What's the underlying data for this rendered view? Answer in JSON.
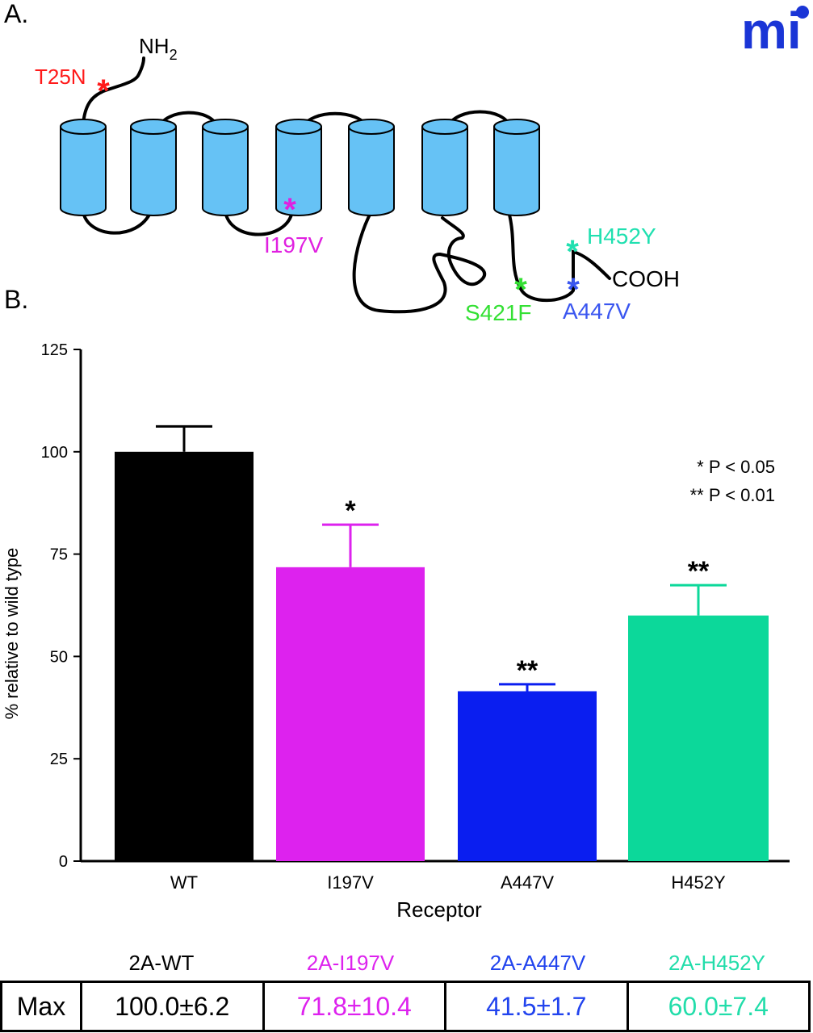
{
  "panel_a": {
    "label": "A.",
    "logo_text": "mi",
    "nh2": "NH",
    "nh2_sub": "2",
    "cooh": "COOH",
    "mutations": [
      {
        "label": "T25N",
        "color": "#ff1a1a"
      },
      {
        "label": "I197V",
        "color": "#e020e0"
      },
      {
        "label": "S421F",
        "color": "#33e033"
      },
      {
        "label": "A447V",
        "color": "#3a56f0"
      },
      {
        "label": "H452Y",
        "color": "#20e0b0"
      }
    ],
    "helix_color": "#66c2f5"
  },
  "panel_b": {
    "label": "B.",
    "legend": [
      "* P < 0.05",
      "** P < 0.01"
    ]
  },
  "chart_data": {
    "type": "bar",
    "categories": [
      "WT",
      "I197V",
      "A447V",
      "H452Y"
    ],
    "values": [
      100.0,
      71.8,
      41.5,
      60.0
    ],
    "errors": [
      6.2,
      10.4,
      1.7,
      7.4
    ],
    "colors": [
      "#000000",
      "#dd22ee",
      "#0a1ef0",
      "#0cd89a"
    ],
    "significance": [
      "",
      "*",
      "**",
      "**"
    ],
    "xlabel": "Receptor",
    "ylabel": "% relative to wild type",
    "ylim": [
      0,
      125
    ],
    "yticks": [
      0,
      25,
      50,
      75,
      100,
      125
    ],
    "grid": false
  },
  "table": {
    "headers": [
      "2A-WT",
      "2A-I197V",
      "2A-A447V",
      "2A-H452Y"
    ],
    "header_colors": [
      "#000000",
      "#dd22ee",
      "#2244ee",
      "#22ddaa"
    ],
    "row_label": "Max",
    "values": [
      "100.0±6.2",
      "71.8±10.4",
      "41.5±1.7",
      "60.0±7.4"
    ]
  }
}
